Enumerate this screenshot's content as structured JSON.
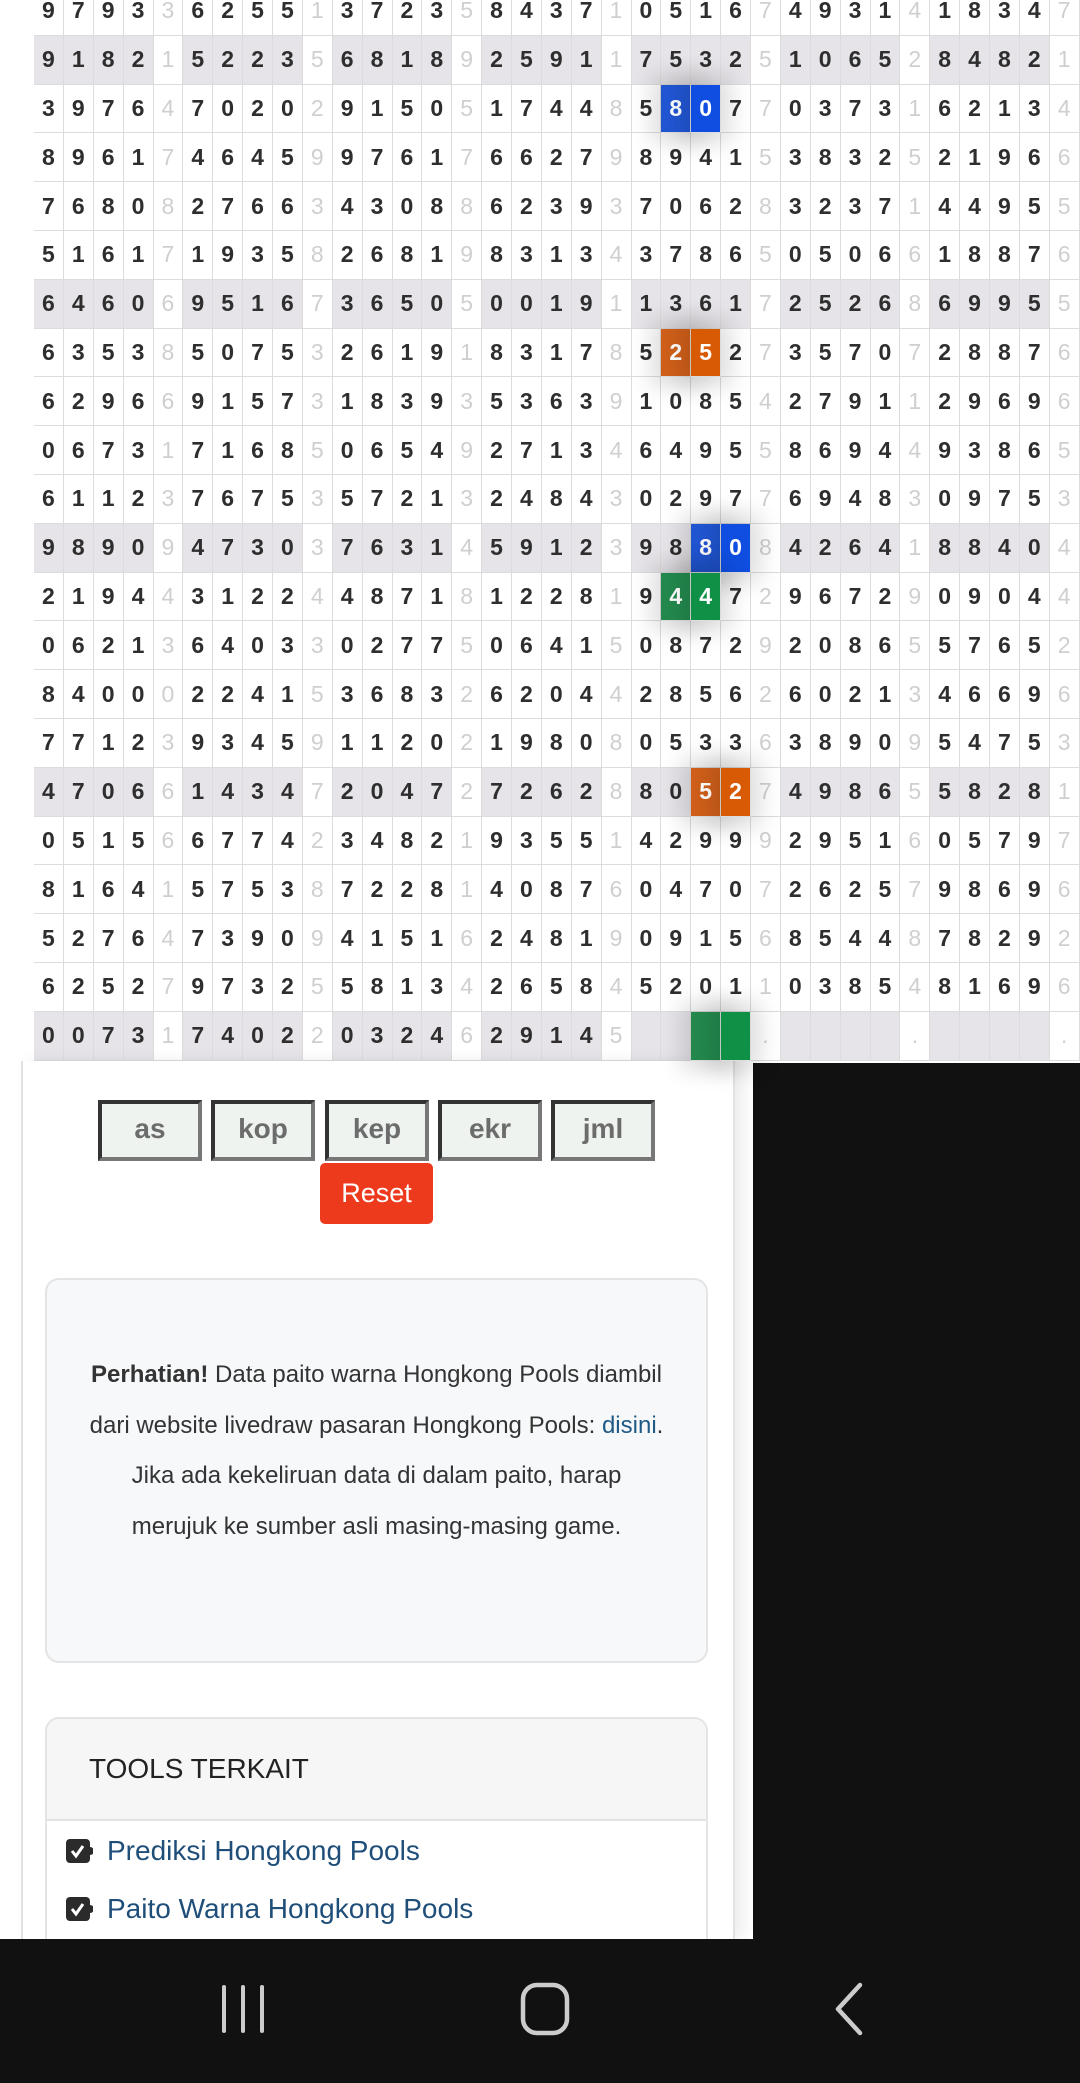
{
  "grid": {
    "rows": [
      {
        "groups": [
          "9793",
          "6255",
          "3723",
          "8437",
          "0516",
          "4931",
          "1834"
        ],
        "seps": [
          "3",
          "1",
          "5",
          "1",
          "7",
          "4",
          "7"
        ],
        "shaded": false
      },
      {
        "groups": [
          "9182",
          "5223",
          "6818",
          "2591",
          "7532",
          "1065",
          "8482"
        ],
        "seps": [
          "1",
          "5",
          "9",
          "1",
          "5",
          "2",
          "1"
        ],
        "shaded": true
      },
      {
        "groups": [
          "3976",
          "7020",
          "9150",
          "1744",
          "5807",
          "0373",
          "6213"
        ],
        "seps": [
          "4",
          "2",
          "5",
          "8",
          "7",
          "1",
          "4"
        ],
        "shaded": false
      },
      {
        "groups": [
          "8961",
          "4645",
          "9761",
          "6627",
          "8941",
          "3832",
          "2196"
        ],
        "seps": [
          "7",
          "9",
          "7",
          "9",
          "5",
          "5",
          "6"
        ],
        "shaded": false
      },
      {
        "groups": [
          "7680",
          "2766",
          "4308",
          "6239",
          "7062",
          "3237",
          "4495"
        ],
        "seps": [
          "8",
          "3",
          "8",
          "3",
          "8",
          "1",
          "5"
        ],
        "shaded": false
      },
      {
        "groups": [
          "5161",
          "1935",
          "2681",
          "8313",
          "3786",
          "0506",
          "1887"
        ],
        "seps": [
          "7",
          "8",
          "9",
          "4",
          "5",
          "6",
          "6"
        ],
        "shaded": false
      },
      {
        "groups": [
          "6460",
          "9516",
          "3650",
          "0019",
          "1361",
          "2526",
          "6995"
        ],
        "seps": [
          "6",
          "7",
          "5",
          "1",
          "7",
          "8",
          "5"
        ],
        "shaded": true
      },
      {
        "groups": [
          "6353",
          "5075",
          "2619",
          "8317",
          "5252",
          "3570",
          "2887"
        ],
        "seps": [
          "8",
          "3",
          "1",
          "8",
          "7",
          "7",
          "6"
        ],
        "shaded": false
      },
      {
        "groups": [
          "6296",
          "9157",
          "1839",
          "5363",
          "1085",
          "2791",
          "2969"
        ],
        "seps": [
          "6",
          "3",
          "3",
          "9",
          "4",
          "1",
          "6"
        ],
        "shaded": false
      },
      {
        "groups": [
          "0673",
          "7168",
          "0654",
          "2713",
          "6495",
          "8694",
          "9386"
        ],
        "seps": [
          "1",
          "5",
          "9",
          "4",
          "5",
          "4",
          "5"
        ],
        "shaded": false
      },
      {
        "groups": [
          "6112",
          "7675",
          "5721",
          "2484",
          "0297",
          "6948",
          "0975"
        ],
        "seps": [
          "3",
          "3",
          "3",
          "3",
          "7",
          "3",
          "3"
        ],
        "shaded": false
      },
      {
        "groups": [
          "9890",
          "4730",
          "7631",
          "5912",
          "9880",
          "4264",
          "8840"
        ],
        "seps": [
          "9",
          "3",
          "4",
          "3",
          "8",
          "1",
          "4"
        ],
        "shaded": true
      },
      {
        "groups": [
          "2194",
          "3122",
          "4871",
          "1228",
          "9447",
          "9672",
          "0904"
        ],
        "seps": [
          "4",
          "4",
          "8",
          "1",
          "2",
          "9",
          "4"
        ],
        "shaded": false
      },
      {
        "groups": [
          "0621",
          "6403",
          "0277",
          "0641",
          "0872",
          "2086",
          "5765"
        ],
        "seps": [
          "3",
          "3",
          "5",
          "5",
          "9",
          "5",
          "2"
        ],
        "shaded": false
      },
      {
        "groups": [
          "8400",
          "2241",
          "3683",
          "6204",
          "2856",
          "6021",
          "4669"
        ],
        "seps": [
          "0",
          "5",
          "2",
          "4",
          "2",
          "3",
          "6"
        ],
        "shaded": false
      },
      {
        "groups": [
          "7712",
          "9345",
          "1120",
          "1980",
          "0533",
          "3890",
          "5475"
        ],
        "seps": [
          "3",
          "9",
          "2",
          "8",
          "6",
          "9",
          "3"
        ],
        "shaded": false
      },
      {
        "groups": [
          "4706",
          "1434",
          "2047",
          "7262",
          "8052",
          "4986",
          "5828"
        ],
        "seps": [
          "6",
          "7",
          "2",
          "8",
          "7",
          "5",
          "1"
        ],
        "shaded": true
      },
      {
        "groups": [
          "0515",
          "6774",
          "3482",
          "9355",
          "4299",
          "2951",
          "0579"
        ],
        "seps": [
          "6",
          "2",
          "1",
          "1",
          "9",
          "6",
          "7"
        ],
        "shaded": false
      },
      {
        "groups": [
          "8164",
          "5753",
          "7228",
          "4087",
          "0470",
          "2625",
          "9869"
        ],
        "seps": [
          "1",
          "8",
          "1",
          "6",
          "7",
          "7",
          "6"
        ],
        "shaded": false
      },
      {
        "groups": [
          "5276",
          "7390",
          "4151",
          "2481",
          "0915",
          "8544",
          "7829"
        ],
        "seps": [
          "4",
          "9",
          "6",
          "9",
          "6",
          "8",
          "2"
        ],
        "shaded": false
      },
      {
        "groups": [
          "6252",
          "9732",
          "5813",
          "2658",
          "5201",
          "0385",
          "8169"
        ],
        "seps": [
          "7",
          "5",
          "4",
          "4",
          "1",
          "4",
          "6"
        ],
        "shaded": false
      },
      {
        "groups": [
          "0073",
          "7402",
          "0324",
          "2914",
          "    ",
          "    ",
          "    "
        ],
        "seps": [
          "1",
          "2",
          "6",
          "5",
          ".",
          ".",
          "."
        ],
        "shaded": true
      }
    ],
    "highlights": [
      {
        "row": 2,
        "col": 21,
        "color": "#2156d3"
      },
      {
        "row": 2,
        "col": 22,
        "color": "#0f4ee0"
      },
      {
        "row": 7,
        "col": 21,
        "color": "#cf5f1a"
      },
      {
        "row": 7,
        "col": 22,
        "color": "#d85a05"
      },
      {
        "row": 11,
        "col": 22,
        "color": "#2156d3"
      },
      {
        "row": 11,
        "col": 23,
        "color": "#0f4ee0"
      },
      {
        "row": 12,
        "col": 21,
        "color": "#23894d"
      },
      {
        "row": 12,
        "col": 22,
        "color": "#0e9147"
      },
      {
        "row": 16,
        "col": 22,
        "color": "#cf5f1a"
      },
      {
        "row": 16,
        "col": 23,
        "color": "#d85a05"
      },
      {
        "row": 21,
        "col": 22,
        "color": "#23894d"
      },
      {
        "row": 21,
        "col": 23,
        "color": "#0e9147"
      }
    ]
  },
  "filters": {
    "as": "as",
    "kop": "kop",
    "kep": "kep",
    "ekr": "ekr",
    "jml": "jml",
    "reset": "Reset"
  },
  "notice": {
    "bold": "Perhatian!",
    "text1": " Data paito warna Hongkong Pools diambil dari website livedraw pasaran Hongkong Pools: ",
    "link": "disini",
    "text2": ". Jika ada kekeliruan data di dalam paito, harap merujuk ke sumber asli masing-masing game."
  },
  "tools": {
    "title": "TOOLS TERKAIT",
    "items": [
      {
        "label": "Prediksi Hongkong Pools",
        "icon": "checkbox-checked-icon"
      },
      {
        "label": "Paito Warna Hongkong Pools",
        "icon": "checkbox-checked-icon"
      }
    ]
  },
  "navbar": {
    "icons": [
      "recent-apps-icon",
      "home-icon",
      "back-icon"
    ]
  }
}
